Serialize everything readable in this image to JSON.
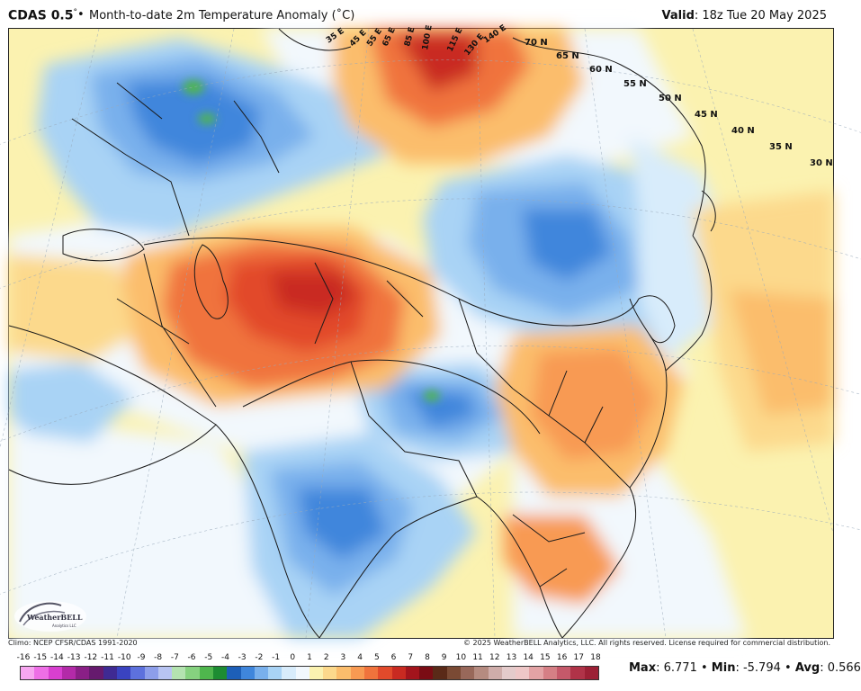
{
  "header": {
    "product": "CDAS 0.5",
    "degree_mark": "°",
    "separator": "•",
    "title": "Month-to-date 2m Temperature Anomaly (˚C)",
    "valid_label": "Valid",
    "valid_value": ": 18z Tue 20 May 2025"
  },
  "map": {
    "longitude_labels": [
      "35 E",
      "45 E",
      "55 E",
      "65 E",
      "85 E",
      "100 E",
      "115 E",
      "130 E",
      "140 E"
    ],
    "latitude_labels": [
      "70 N",
      "65 N",
      "60 N",
      "55 N",
      "50 N",
      "45 N",
      "40 N",
      "35 N",
      "30 N"
    ],
    "logo_text": "WeatherBELL",
    "logo_subtext": "Analytics LLC"
  },
  "footer": {
    "climo": "Climo: NCEP CFSR/CDAS 1991-2020",
    "copyright": "© 2025 WeatherBELL Analytics, LLC. All rights reserved. License required for commercial distribution."
  },
  "colorbar": {
    "ticks": [
      "-16",
      "-15",
      "-14",
      "-13",
      "-12",
      "-11",
      "-10",
      "-9",
      "-8",
      "-7",
      "-6",
      "-5",
      "-4",
      "-3",
      "-2",
      "-1",
      "0",
      "1",
      "2",
      "3",
      "4",
      "5",
      "6",
      "7",
      "8",
      "9",
      "10",
      "11",
      "12",
      "13",
      "14",
      "15",
      "16",
      "17",
      "18"
    ],
    "colors": [
      "#f7a6f0",
      "#ee6fe6",
      "#d83fd0",
      "#b32aa8",
      "#8a1f86",
      "#661a6e",
      "#3f2a93",
      "#3a43c0",
      "#5d71dd",
      "#8d9eea",
      "#b8c4f2",
      "#b4e3b0",
      "#86d27f",
      "#4fb64d",
      "#1d8c32",
      "#1d5fb8",
      "#3f86dc",
      "#79b0ec",
      "#a9d3f5",
      "#d8ecfb",
      "#f2f8fd",
      "#fbf2b0",
      "#fcd98c",
      "#fbbd6c",
      "#f89a52",
      "#f0733c",
      "#e24a2b",
      "#c92a21",
      "#a3141c",
      "#7a0c14",
      "#5a2a18",
      "#7a4a34",
      "#98685a",
      "#b58b80",
      "#cfadaa",
      "#e4cbcb",
      "#eec7c7",
      "#e3a3a5",
      "#d57f85",
      "#c5596a",
      "#b03348",
      "#9c2035"
    ]
  },
  "stats": {
    "max_label": "Max",
    "max_value": ": 6.771",
    "min_label": "Min",
    "min_value": ": -5.794",
    "avg_label": "Avg",
    "avg_value": ": 0.566",
    "separator": "•"
  }
}
